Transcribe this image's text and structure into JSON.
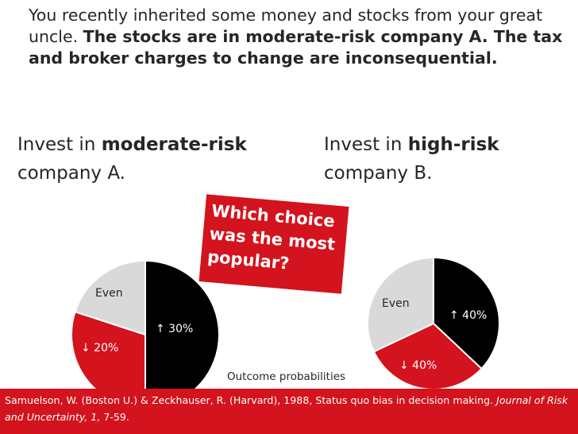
{
  "intro": {
    "plain": "You recently inherited some money and stocks from your great uncle.",
    "bold": "The stocks are in moderate-risk company A.  The tax and broker charges to change are inconsequential."
  },
  "option_a": {
    "prefix": "Invest in ",
    "emphasis": "moderate-risk",
    "suffix": "company A."
  },
  "option_b": {
    "prefix": "Invest in ",
    "emphasis": "high-risk",
    "suffix": "company B."
  },
  "callout": "Which choice was the most popular?",
  "pie_a": {
    "labels": {
      "even": "Even",
      "up": "↑ 30%",
      "down": "↓ 20%"
    },
    "slices": [
      {
        "name": "up",
        "fraction": 0.5,
        "color": "#000000"
      },
      {
        "name": "down",
        "fraction": 0.3,
        "color": "#d3131d"
      },
      {
        "name": "even",
        "fraction": 0.2,
        "color": "#d9d9d9"
      }
    ]
  },
  "pie_b": {
    "labels": {
      "even": "Even",
      "up": "↑ 40%",
      "down": "↓ 40%"
    },
    "slices": [
      {
        "name": "up",
        "fraction": 0.37,
        "color": "#000000"
      },
      {
        "name": "down",
        "fraction": 0.31,
        "color": "#d3131d"
      },
      {
        "name": "even",
        "fraction": 0.32,
        "color": "#d9d9d9"
      }
    ]
  },
  "caption": "Outcome probabilities",
  "reference": {
    "text": "Samuelson, W. (Boston U.) & Zeckhauser, R. (Harvard), 1988, Status quo bias in decision making.",
    "journal": "Journal of Risk and Uncertainty, 1,",
    "pages": "7-59."
  },
  "colors": {
    "accent_red": "#d3131d",
    "black": "#000000",
    "gray": "#d9d9d9"
  }
}
